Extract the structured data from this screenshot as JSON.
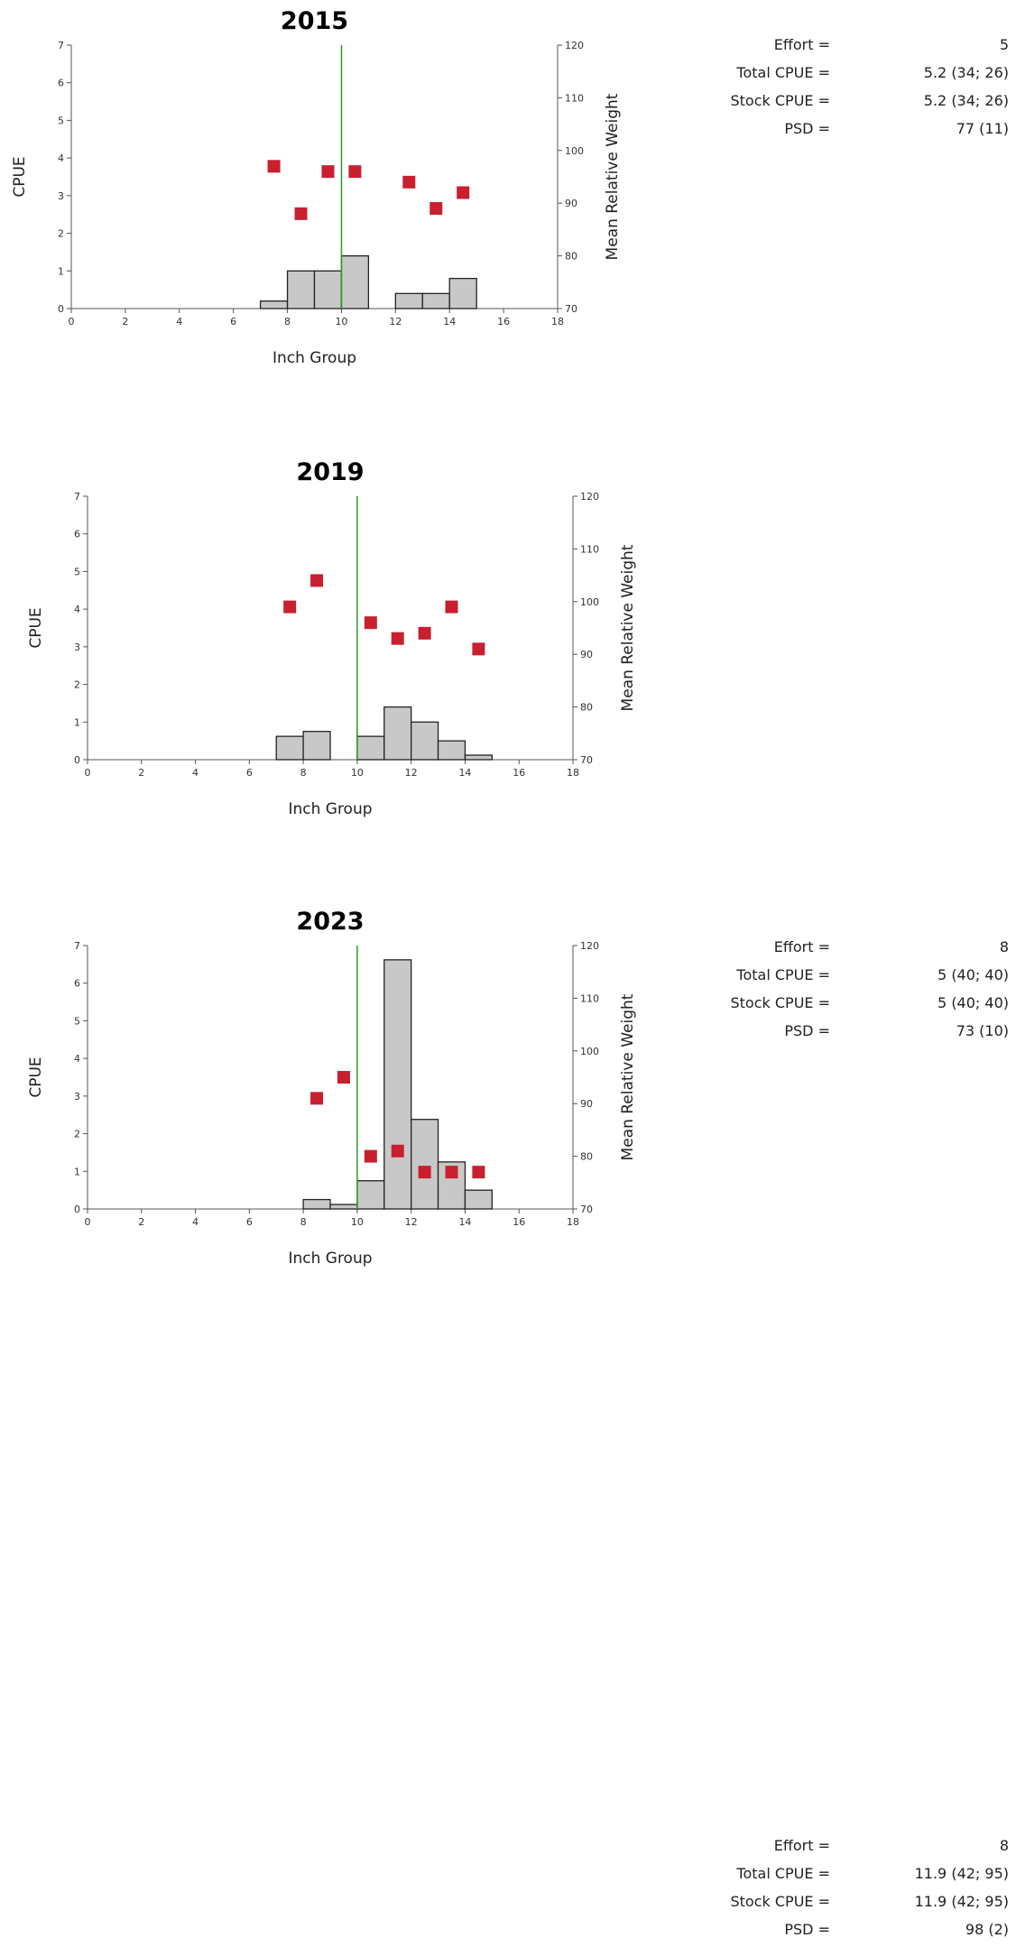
{
  "colors": {
    "bar_fill": "#c8c8c8",
    "bar_stroke": "#222222",
    "point_fill": "#c8202e",
    "reference_line": "#2a9a2a",
    "axis": "#555555"
  },
  "chart_data": [
    {
      "type": "bar",
      "title": "2015",
      "xlabel": "Inch Group",
      "ylabel": "CPUE",
      "y2label": "Mean Relative Weight",
      "xlim": [
        0,
        18
      ],
      "ylim": [
        0,
        7
      ],
      "y2lim": [
        70,
        120
      ],
      "xticks": [
        "0",
        "2",
        "4",
        "6",
        "8",
        "10",
        "12",
        "14",
        "16",
        "18"
      ],
      "yticks": [
        "0",
        "1",
        "2",
        "3",
        "4",
        "5",
        "6",
        "7"
      ],
      "y2ticks": [
        "70",
        "80",
        "90",
        "100",
        "110",
        "120"
      ],
      "reference_line_x": 10,
      "bars": [
        {
          "x": 7,
          "cpue": 0.2
        },
        {
          "x": 8,
          "cpue": 1.0
        },
        {
          "x": 9,
          "cpue": 1.0
        },
        {
          "x": 10,
          "cpue": 1.4
        },
        {
          "x": 12,
          "cpue": 0.4
        },
        {
          "x": 13,
          "cpue": 0.4
        },
        {
          "x": 14,
          "cpue": 0.8
        }
      ],
      "relative_weight": [
        {
          "x": 7,
          "wr": 97
        },
        {
          "x": 8,
          "wr": 88
        },
        {
          "x": 9,
          "wr": 96
        },
        {
          "x": 10,
          "wr": 96
        },
        {
          "x": 12,
          "wr": 94
        },
        {
          "x": 13,
          "wr": 89
        },
        {
          "x": 14,
          "wr": 92
        }
      ]
    },
    {
      "type": "bar",
      "title": "2019",
      "xlabel": "Inch Group",
      "ylabel": "CPUE",
      "y2label": "Mean Relative Weight",
      "xlim": [
        0,
        18
      ],
      "ylim": [
        0,
        7
      ],
      "y2lim": [
        70,
        120
      ],
      "xticks": [
        "0",
        "2",
        "4",
        "6",
        "8",
        "10",
        "12",
        "14",
        "16",
        "18"
      ],
      "yticks": [
        "0",
        "1",
        "2",
        "3",
        "4",
        "5",
        "6",
        "7"
      ],
      "y2ticks": [
        "70",
        "80",
        "90",
        "100",
        "110",
        "120"
      ],
      "reference_line_x": 10,
      "bars": [
        {
          "x": 7,
          "cpue": 0.62
        },
        {
          "x": 8,
          "cpue": 0.75
        },
        {
          "x": 10,
          "cpue": 0.62
        },
        {
          "x": 11,
          "cpue": 1.4
        },
        {
          "x": 12,
          "cpue": 1.0
        },
        {
          "x": 13,
          "cpue": 0.5
        },
        {
          "x": 14,
          "cpue": 0.12
        }
      ],
      "relative_weight": [
        {
          "x": 7,
          "wr": 99
        },
        {
          "x": 8,
          "wr": 104
        },
        {
          "x": 10,
          "wr": 96
        },
        {
          "x": 11,
          "wr": 93
        },
        {
          "x": 12,
          "wr": 94
        },
        {
          "x": 13,
          "wr": 99
        },
        {
          "x": 14,
          "wr": 91
        }
      ]
    },
    {
      "type": "bar",
      "title": "2023",
      "xlabel": "Inch Group",
      "ylabel": "CPUE",
      "y2label": "Mean Relative Weight",
      "xlim": [
        0,
        18
      ],
      "ylim": [
        0,
        7
      ],
      "y2lim": [
        70,
        120
      ],
      "xticks": [
        "0",
        "2",
        "4",
        "6",
        "8",
        "10",
        "12",
        "14",
        "16",
        "18"
      ],
      "yticks": [
        "0",
        "1",
        "2",
        "3",
        "4",
        "5",
        "6",
        "7"
      ],
      "y2ticks": [
        "70",
        "80",
        "90",
        "100",
        "110",
        "120"
      ],
      "reference_line_x": 10,
      "bars": [
        {
          "x": 8,
          "cpue": 0.25
        },
        {
          "x": 9,
          "cpue": 0.12
        },
        {
          "x": 10,
          "cpue": 0.75
        },
        {
          "x": 11,
          "cpue": 6.62
        },
        {
          "x": 12,
          "cpue": 2.38
        },
        {
          "x": 13,
          "cpue": 1.25
        },
        {
          "x": 14,
          "cpue": 0.5
        }
      ],
      "relative_weight": [
        {
          "x": 8,
          "wr": 91
        },
        {
          "x": 9,
          "wr": 95
        },
        {
          "x": 10,
          "wr": 80
        },
        {
          "x": 11,
          "wr": 81
        },
        {
          "x": 12,
          "wr": 77
        },
        {
          "x": 13,
          "wr": 77
        },
        {
          "x": 14,
          "wr": 77
        }
      ]
    }
  ],
  "stats": [
    {
      "rows": [
        {
          "label": "Effort =",
          "value": "5"
        },
        {
          "label": "Total CPUE =",
          "value": "5.2 (34; 26)"
        },
        {
          "label": "Stock CPUE =",
          "value": "5.2 (34; 26)"
        },
        {
          "label": "PSD =",
          "value": "77 (11)"
        }
      ]
    },
    {
      "rows": [
        {
          "label": "Effort =",
          "value": "8"
        },
        {
          "label": "Total CPUE =",
          "value": "5 (40; 40)"
        },
        {
          "label": "Stock CPUE =",
          "value": "5 (40; 40)"
        },
        {
          "label": "PSD =",
          "value": "73 (10)"
        }
      ]
    },
    {
      "rows": [
        {
          "label": "Effort =",
          "value": "8"
        },
        {
          "label": "Total CPUE =",
          "value": "11.9 (42; 95)"
        },
        {
          "label": "Stock CPUE =",
          "value": "11.9 (42; 95)"
        },
        {
          "label": "PSD =",
          "value": "98 (2)"
        }
      ]
    }
  ]
}
